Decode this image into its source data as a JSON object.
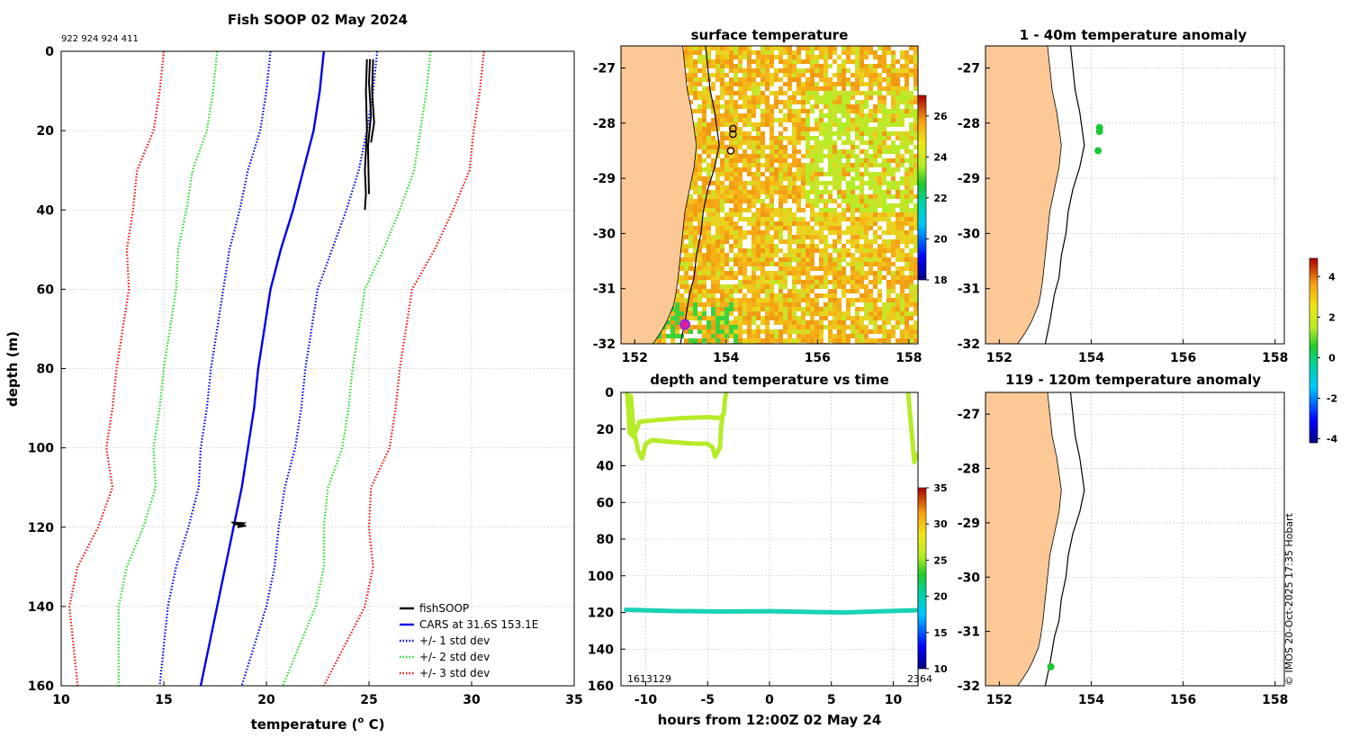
{
  "colors": {
    "land": "#fbc896",
    "fishsoop": "#000000",
    "cars_mean": "#0000e6",
    "std1": "#0000e6",
    "std2": "#22dd22",
    "std3": "#ee1111",
    "grid": "#bbbbbb",
    "anomaly_dot": "#19c832",
    "sst_point": "#b4ec28",
    "deep_point": "#19d2b4",
    "marker": "#8a2be2",
    "marker_fill": "#e6199b"
  },
  "credit": "© IMOS 20-Oct-2025 17:35 Hobart",
  "chart_data": [
    {
      "id": "profile",
      "type": "line",
      "title": "Fish SOOP 02 May 2024",
      "subtitle": "922 924 924 411",
      "xlabel": "temperature (° C)",
      "xlabel_main": "temperature (",
      "xlabel_sup": "o",
      "xlabel_tail": " C)",
      "ylabel": "depth (m)",
      "xlim": [
        10,
        35
      ],
      "ylim": [
        0,
        160
      ],
      "y_reversed": true,
      "xticks": [
        10,
        15,
        20,
        25,
        30,
        35
      ],
      "yticks": [
        0,
        20,
        40,
        60,
        80,
        100,
        120,
        140,
        160
      ],
      "legend_position": "bottom-right",
      "depth": [
        0,
        10,
        20,
        30,
        40,
        50,
        60,
        70,
        80,
        90,
        100,
        110,
        120,
        130,
        140,
        150,
        160
      ],
      "cars_mean": [
        22.8,
        22.6,
        22.3,
        21.8,
        21.3,
        20.7,
        20.2,
        19.9,
        19.6,
        19.4,
        19.1,
        18.8,
        18.4,
        18.0,
        17.6,
        17.2,
        16.8
      ],
      "series": [
        {
          "name": "fishSOOP",
          "style": "solid",
          "color_key": "fishsoop"
        },
        {
          "name": "CARS at 31.6S 153.1E",
          "style": "solid",
          "color_key": "cars_mean"
        },
        {
          "name": "+/- 1 std dev",
          "style": "dotted",
          "color_key": "std1",
          "sigma": 1
        },
        {
          "name": "+/- 2 std dev",
          "style": "dotted",
          "color_key": "std2",
          "sigma": 2
        },
        {
          "name": "+/- 3 std dev",
          "style": "dotted",
          "color_key": "std3",
          "sigma": 3
        }
      ],
      "sigma_per_depth": [
        2.6,
        2.6,
        2.6,
        2.7,
        2.6,
        2.5,
        2.3,
        2.3,
        2.3,
        2.3,
        2.3,
        2.1,
        2.2,
        2.4,
        2.4,
        2.2,
        2.0
      ],
      "fishsoop_shallow_casts": [
        {
          "x": [
            24.9,
            24.85,
            24.9,
            24.8,
            24.85,
            24.8
          ],
          "depth": [
            2,
            10,
            20,
            30,
            36,
            40
          ]
        },
        {
          "x": [
            25.05,
            25.0,
            25.1,
            24.95,
            25.0
          ],
          "depth": [
            2,
            8,
            16,
            24,
            36
          ]
        },
        {
          "x": [
            25.2,
            25.15,
            25.25,
            25.1
          ],
          "depth": [
            2,
            10,
            18,
            23
          ]
        }
      ],
      "fishsoop_deep": {
        "x": [
          18.4,
          19.0,
          18.6,
          18.9,
          18.3
        ],
        "depth": [
          119.2,
          119.6,
          120.0,
          119.0,
          118.8
        ]
      }
    },
    {
      "id": "sst_map",
      "type": "heatmap",
      "title": "surface temperature",
      "xlim": [
        151.7,
        158.2
      ],
      "ylim": [
        -32,
        -26.6
      ],
      "xticks": [
        152,
        154,
        156,
        158
      ],
      "yticks": [
        -27,
        -28,
        -29,
        -30,
        -31,
        -32
      ],
      "colorbar": {
        "min": 18,
        "max": 27,
        "ticks": [
          18,
          20,
          22,
          24,
          26
        ]
      },
      "points": [
        {
          "lon": 154.15,
          "lat": -28.1
        },
        {
          "lon": 154.15,
          "lat": -28.2
        },
        {
          "lon": 154.1,
          "lat": -28.5
        }
      ],
      "current_position": {
        "lon": 153.1,
        "lat": -31.65
      }
    },
    {
      "id": "depth_time",
      "type": "scatter",
      "title": "depth and temperature vs time",
      "xlabel": "hours from 12:00Z 02 May 24",
      "xlim": [
        -12,
        12
      ],
      "ylim": [
        0,
        160
      ],
      "y_reversed": true,
      "xticks": [
        -10,
        -5,
        0,
        5,
        10
      ],
      "yticks": [
        0,
        20,
        40,
        60,
        80,
        100,
        120,
        140,
        160
      ],
      "colorbar": {
        "min": 10,
        "max": 35,
        "ticks": [
          10,
          15,
          20,
          25,
          30,
          35
        ]
      },
      "annotations": [
        "1613129",
        "2364"
      ],
      "deep_track": {
        "depth": 119,
        "temperature": 19
      },
      "shallow_track_temperature": 25
    },
    {
      "id": "anom_shallow",
      "type": "scatter",
      "title": "1 - 40m temperature anomaly",
      "xlim": [
        151.7,
        158.2
      ],
      "ylim": [
        -32,
        -26.6
      ],
      "xticks": [
        152,
        154,
        156,
        158
      ],
      "yticks": [
        -27,
        -28,
        -29,
        -30,
        -31,
        -32
      ],
      "points": [
        {
          "lon": 154.18,
          "lat": -28.08
        },
        {
          "lon": 154.18,
          "lat": -28.15
        },
        {
          "lon": 154.15,
          "lat": -28.5
        }
      ]
    },
    {
      "id": "anom_deep",
      "type": "scatter",
      "title": "119 - 120m temperature anomaly",
      "xlim": [
        151.7,
        158.2
      ],
      "ylim": [
        -32,
        -26.6
      ],
      "xticks": [
        152,
        154,
        156,
        158
      ],
      "yticks": [
        -27,
        -28,
        -29,
        -30,
        -31,
        -32
      ],
      "points": [
        {
          "lon": 153.12,
          "lat": -31.65
        }
      ],
      "colorbar": {
        "min": -4.2,
        "max": 4.9,
        "ticks": [
          -4,
          -2,
          0,
          2,
          4
        ]
      }
    }
  ],
  "coast": {
    "lon": [
      153.05,
      153.1,
      153.15,
      153.25,
      153.3,
      153.35,
      153.3,
      153.2,
      153.1,
      153.05,
      153.0,
      152.95,
      152.9,
      152.85,
      152.75,
      152.7,
      152.6,
      152.5,
      152.4
    ],
    "lat": [
      -26.6,
      -27.0,
      -27.4,
      -27.8,
      -28.1,
      -28.4,
      -28.8,
      -29.2,
      -29.6,
      -30.0,
      -30.4,
      -30.8,
      -31.1,
      -31.3,
      -31.5,
      -31.6,
      -31.75,
      -31.88,
      -32.0
    ]
  },
  "isobath": {
    "lon": [
      153.55,
      153.6,
      153.65,
      153.75,
      153.8,
      153.85,
      153.75,
      153.6,
      153.5,
      153.45,
      153.35,
      153.3,
      153.2,
      153.15,
      153.1,
      153.05,
      153.0
    ],
    "lat": [
      -26.6,
      -27.0,
      -27.4,
      -27.8,
      -28.1,
      -28.4,
      -28.8,
      -29.2,
      -29.6,
      -30.0,
      -30.4,
      -30.8,
      -31.1,
      -31.35,
      -31.6,
      -31.8,
      -32.0
    ]
  }
}
